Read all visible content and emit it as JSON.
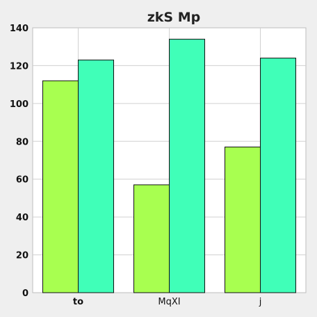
{
  "chart_data": {
    "type": "bar",
    "title": "zkS Mp",
    "xlabel": "",
    "ylabel": "",
    "categories": [
      "to",
      "MqXI",
      "j"
    ],
    "category_bold": [
      true,
      false,
      false
    ],
    "series": [
      {
        "values": [
          112,
          57,
          77
        ],
        "color": "#a8ff50"
      },
      {
        "values": [
          123,
          134,
          124
        ],
        "color": "#40ffb8"
      }
    ],
    "ylim": [
      0,
      140
    ],
    "yticks": [
      0,
      20,
      40,
      60,
      80,
      100,
      120,
      140
    ],
    "grid": true,
    "legend": "none"
  }
}
